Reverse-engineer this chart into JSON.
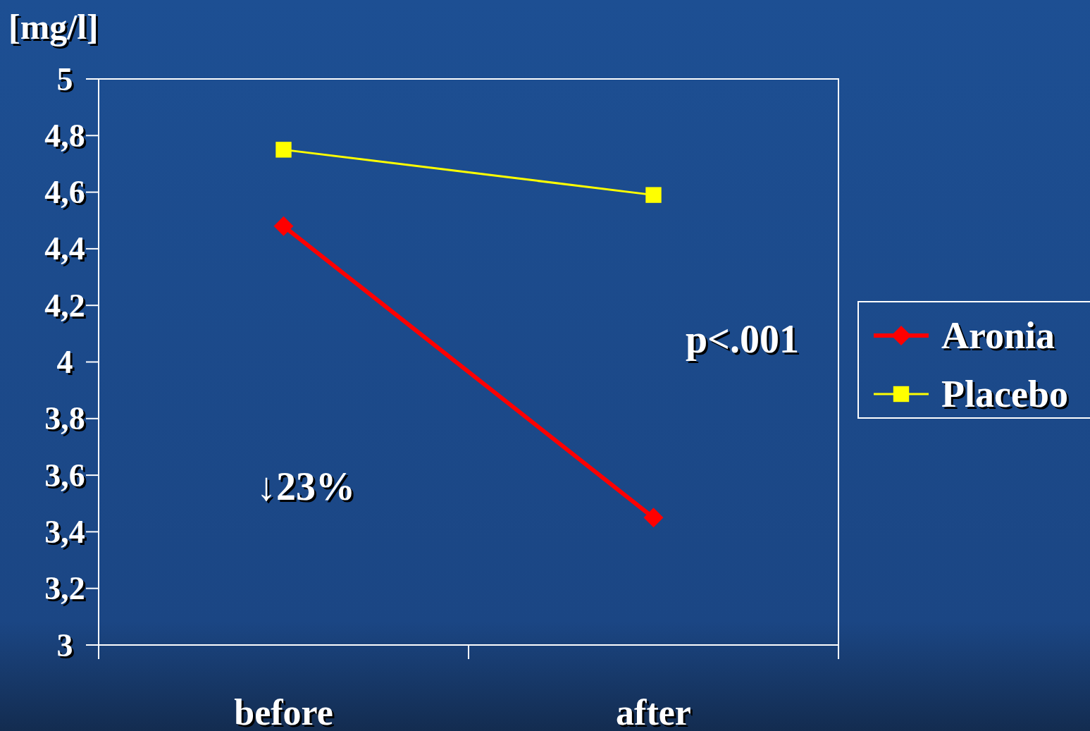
{
  "chart_data": {
    "type": "line",
    "ylabel": "[mg/l]",
    "categories": [
      "before",
      "after"
    ],
    "series": [
      {
        "name": "Aronia",
        "color": "#ff0000",
        "values": [
          4.48,
          3.45
        ],
        "marker": "diamond"
      },
      {
        "name": "Placebo",
        "color": "#ffff00",
        "values": [
          4.75,
          4.59
        ],
        "marker": "square"
      }
    ],
    "ylim": [
      3,
      5
    ],
    "yticks": [
      3,
      {
        "value": 3.2,
        "label": "3,2"
      },
      {
        "value": 3.4,
        "label": "3,4"
      },
      {
        "value": 3.6,
        "label": "3,6"
      },
      {
        "value": 3.8,
        "label": "3,8"
      },
      4,
      {
        "value": 4.2,
        "label": "4,2"
      },
      {
        "value": 4.4,
        "label": "4,4"
      },
      {
        "value": 4.6,
        "label": "4,6"
      },
      {
        "value": 4.8,
        "label": "4,8"
      },
      5
    ],
    "annotations": [
      "↓23%",
      "p<.001"
    ],
    "grid": false,
    "legend": "right",
    "line_style": "solid"
  }
}
